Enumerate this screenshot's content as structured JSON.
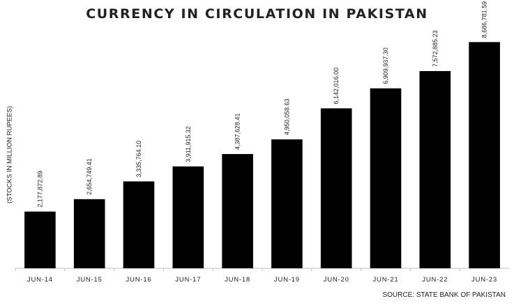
{
  "chart_data": {
    "type": "bar",
    "title": "CURRENCY IN CIRCULATION IN PAKISTAN",
    "ylabel": "(STOCKS IN MILLION RUPEES)",
    "xlabel": "",
    "source": "SOURCE: STATE BANK OF PAKISTAN",
    "categories": [
      "JUN-14",
      "JUN-15",
      "JUN-16",
      "JUN-17",
      "JUN-18",
      "JUN-19",
      "JUN-20",
      "JUN-21",
      "JUN-22",
      "JUN-23"
    ],
    "values": [
      2177872.89,
      2654749.41,
      3335764.1,
      3911915.32,
      4387628.41,
      4950058.63,
      6142016.0,
      6909937.3,
      7572885.23,
      8686781.59
    ],
    "value_labels": [
      "2,177,872.89",
      "2,654,749.41",
      "3,335,764.10",
      "3,911,915.32",
      "4,387,628.41",
      "4,950,058.63",
      "6,142,016.00",
      "6,909,937.30",
      "7,572,885.23",
      "8,686,781.59"
    ],
    "ylim": [
      0,
      9500000
    ],
    "grid": false,
    "legend": "none",
    "bar_color": "#000000"
  }
}
